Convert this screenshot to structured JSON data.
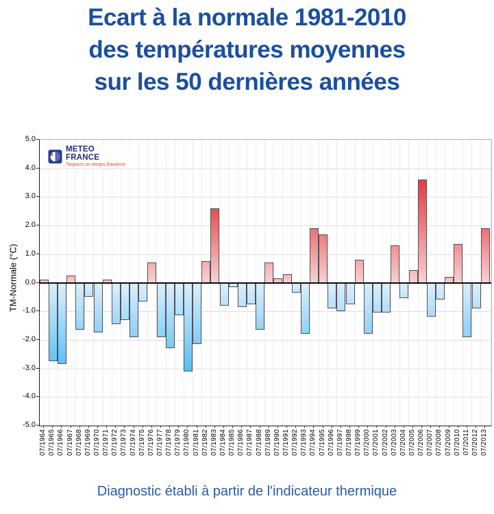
{
  "title": {
    "line1": "Ecart à la normale 1981-2010",
    "line2": "des températures moyennes",
    "line3": "sur les 50 dernières années"
  },
  "logo": {
    "name": "METEO FRANCE",
    "tagline": "Toujours un temps d'avance"
  },
  "caption": "Diagnostic établi à partir de l'indicateur thermique",
  "chart_data": {
    "type": "bar",
    "title": "",
    "xlabel": "",
    "ylabel": "TM-Normale (°C)",
    "ylim": [
      -5.0,
      5.0
    ],
    "ytick_step": 1.0,
    "grid": true,
    "legend_position": "none",
    "categories": [
      "07/1964",
      "07/1965",
      "07/1966",
      "07/1967",
      "07/1968",
      "07/1969",
      "07/1970",
      "07/1971",
      "07/1972",
      "07/1973",
      "07/1974",
      "07/1975",
      "07/1976",
      "07/1977",
      "07/1978",
      "07/1979",
      "07/1980",
      "07/1981",
      "07/1982",
      "07/1983",
      "07/1984",
      "07/1985",
      "07/1986",
      "07/1987",
      "07/1988",
      "07/1989",
      "07/1990",
      "07/1991",
      "07/1992",
      "07/1993",
      "07/1994",
      "07/1995",
      "07/1996",
      "07/1997",
      "07/1998",
      "07/1999",
      "07/2000",
      "07/2001",
      "07/2002",
      "07/2003",
      "07/2004",
      "07/2005",
      "07/2006",
      "07/2007",
      "07/2008",
      "07/2009",
      "07/2010",
      "07/2011",
      "07/2012",
      "07/2013"
    ],
    "values": [
      0.1,
      -2.7,
      -2.8,
      0.25,
      -1.6,
      -0.45,
      -1.7,
      0.1,
      -1.4,
      -1.25,
      -1.85,
      -0.6,
      0.7,
      -1.85,
      -2.25,
      -1.1,
      -3.05,
      -2.1,
      0.75,
      2.6,
      -0.75,
      -0.1,
      -0.8,
      -0.7,
      -1.6,
      0.7,
      0.15,
      0.3,
      -0.3,
      -1.75,
      1.9,
      1.7,
      -0.85,
      -0.95,
      -0.7,
      0.8,
      -1.75,
      -1.0,
      -1.0,
      1.3,
      -0.5,
      0.45,
      3.6,
      -1.15,
      -0.55,
      0.2,
      1.35,
      -1.85,
      -0.85,
      1.9
    ],
    "colors": {
      "positive_strong": "#e73940",
      "positive_pale": "#f7d3d2",
      "negative_strong": "#58bef2",
      "negative_pale": "#dceefb",
      "zero_line": "#0c0c0c",
      "title_blue": "#1b4fa0",
      "caption_blue": "#2a5aa8"
    }
  }
}
